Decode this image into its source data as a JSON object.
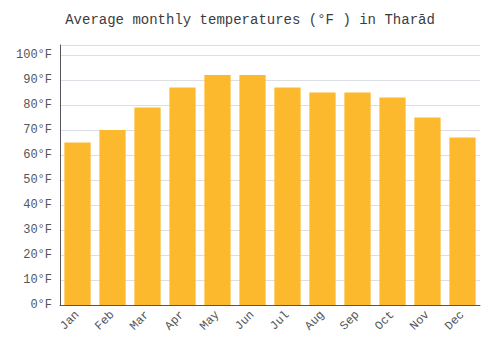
{
  "chart_data": {
    "type": "bar",
    "title": "Average monthly temperatures (°F ) in Tharād",
    "categories": [
      "Jan",
      "Feb",
      "Mar",
      "Apr",
      "May",
      "Jun",
      "Jul",
      "Aug",
      "Sep",
      "Oct",
      "Nov",
      "Dec"
    ],
    "values": [
      65,
      70,
      79,
      87,
      92,
      92,
      87,
      85,
      85,
      83,
      75,
      67
    ],
    "color": "#FDB92E",
    "ylim": [
      0,
      104
    ],
    "yticks": [
      {
        "value": 0,
        "label": "0°F"
      },
      {
        "value": 10,
        "label": "10°F"
      },
      {
        "value": 20,
        "label": "20°F"
      },
      {
        "value": 30,
        "label": "30°F"
      },
      {
        "value": 40,
        "label": "40°F"
      },
      {
        "value": 50,
        "label": "50°F"
      },
      {
        "value": 60,
        "label": "60°F"
      },
      {
        "value": 70,
        "label": "70°F"
      },
      {
        "value": 80,
        "label": "80°F"
      },
      {
        "value": 90,
        "label": "90°F"
      },
      {
        "value": 100,
        "label": "100°F"
      }
    ],
    "grid": true
  }
}
